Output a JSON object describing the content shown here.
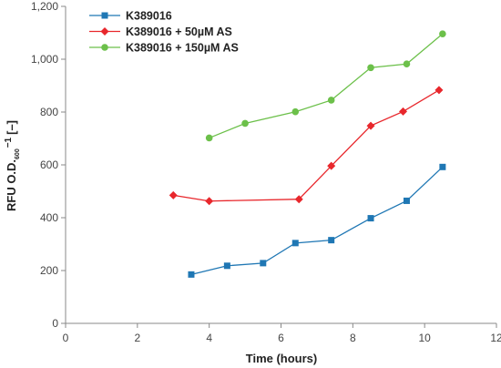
{
  "chart_data": {
    "type": "line",
    "xlabel": "Time (hours)",
    "ylabel": "RFU O.D.",
    "ylabel_sub": "600",
    "ylabel_sup": "−1",
    "ylabel_unit": "[–]",
    "xlim": [
      0,
      12
    ],
    "ylim": [
      0,
      1200
    ],
    "x_ticks": [
      0,
      2,
      4,
      6,
      8,
      10,
      12
    ],
    "x_tick_labels": [
      "0",
      "2",
      "4",
      "6",
      "8",
      "10",
      "12"
    ],
    "y_ticks": [
      0,
      200,
      400,
      600,
      800,
      1000,
      1200
    ],
    "y_tick_labels": [
      "0",
      "200",
      "400",
      "600",
      "800",
      "1,000",
      "1,200"
    ],
    "grid": false,
    "legend_position": "top-left",
    "series": [
      {
        "name": "K389016",
        "color": "#1f77b4",
        "marker": "square",
        "x": [
          3.5,
          4.5,
          5.5,
          6.4,
          7.4,
          8.5,
          9.5,
          10.5
        ],
        "y": [
          185,
          218,
          228,
          304,
          315,
          398,
          464,
          592
        ]
      },
      {
        "name": "K389016 + 50µM AS",
        "color": "#e8272c",
        "marker": "diamond",
        "x": [
          3.0,
          4.0,
          6.5,
          7.4,
          8.5,
          9.4,
          10.4
        ],
        "y": [
          485,
          463,
          470,
          596,
          748,
          802,
          883
        ]
      },
      {
        "name": "K389016 + 150µM AS",
        "color": "#6cc04a",
        "marker": "circle",
        "x": [
          4.0,
          5.0,
          6.4,
          7.4,
          8.5,
          9.5,
          10.5
        ],
        "y": [
          702,
          757,
          801,
          845,
          968,
          982,
          1096
        ]
      }
    ]
  }
}
